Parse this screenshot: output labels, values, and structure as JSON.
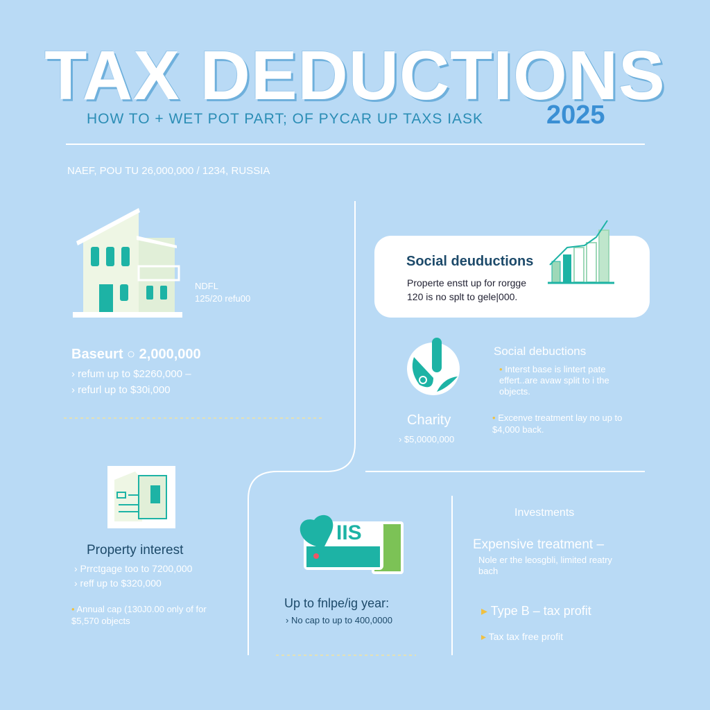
{
  "header": {
    "title": "TAX DEDUCTIONS",
    "subtitle": "HOW TO + WET POT  PART; OF PYCAR UP TAXS IASK",
    "year": "2025",
    "info_line": "NAEF, POU TU 26,000,000 / 1234, RUSSIA"
  },
  "property": {
    "side_label": "NDFL",
    "side_value": "125/20 refu00",
    "heading": "Baseurt ○ 2,000,000",
    "lines": [
      "› refum up to $2260,000 –",
      "› refurl up to $30i,000"
    ]
  },
  "social_card": {
    "title": "Social deuductions",
    "lines": [
      "Properte enstt up for rorgge",
      "120 is no splt to gele|000."
    ]
  },
  "charity": {
    "side_title": "Social debuctions",
    "side_text": "Interst base is lintert pate effert..are avaw split to i the objects.",
    "title": "Charity",
    "value": "› $5,0000,000",
    "note": "Excenve treatment lay no up to $4,000 back."
  },
  "interest": {
    "title": "Property interest",
    "lines": [
      "› Prrctgage too to 7200,000",
      "› reff up to $320,000"
    ],
    "note": "Annual cap (130J0.00 only of for $5,570 objects"
  },
  "iis": {
    "card_text": "IIS",
    "title": "Up to fnlpe/ig year:",
    "line": "› No cap to up to 400,0000"
  },
  "investments": {
    "label": "Investments",
    "title": "Expensive treatment –",
    "text": "Nole er the leosgbli, limited reatry bach",
    "items": [
      "Type B – tax profit",
      "Tax tax free profit"
    ]
  },
  "colors": {
    "background": "#b9daf5",
    "teal": "#1db3a5",
    "accent": "#3a8fd4",
    "bullet": "#f0c040"
  }
}
